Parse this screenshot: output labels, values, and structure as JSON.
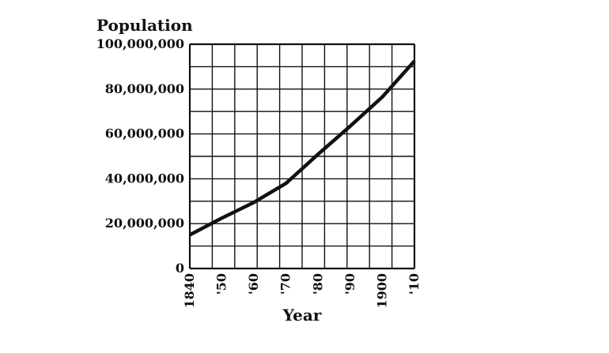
{
  "chart_data": {
    "type": "line",
    "title": "Population",
    "xlabel": "Year",
    "ylabel": "Population",
    "x": [
      1840,
      1850,
      1860,
      1870,
      1880,
      1890,
      1900,
      1910
    ],
    "x_tick_labels": [
      "1840",
      "'50",
      "'60",
      "'70",
      "'80",
      "'90",
      "1900",
      "'10"
    ],
    "y_tick_values": [
      0,
      20000000,
      40000000,
      60000000,
      80000000,
      100000000
    ],
    "y_tick_labels": [
      "0",
      "20,000,000",
      "40,000,000",
      "60,000,000",
      "80,000,000",
      "100,000,000"
    ],
    "series": [
      {
        "values": [
          15000000,
          22500000,
          29500000,
          38000000,
          51000000,
          63500000,
          76500000,
          92500000
        ]
      }
    ],
    "xlim": [
      1840,
      1910
    ],
    "ylim": [
      0,
      100000000
    ],
    "grid": true,
    "line_color": "#111111"
  }
}
